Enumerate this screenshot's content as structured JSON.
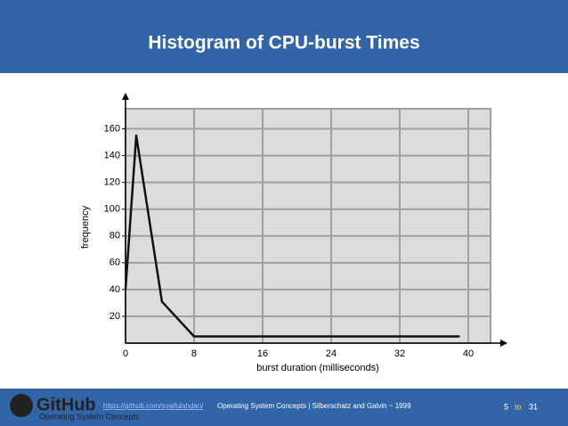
{
  "chart_data": {
    "type": "line",
    "title": "Histogram of CPU-burst Times",
    "x_label": "burst duration (milliseconds)",
    "y_label": "frequency",
    "x": [
      0,
      1.25,
      4.25,
      8,
      39
    ],
    "values": [
      40,
      155,
      31,
      5,
      5
    ],
    "color": "#111111",
    "xlim": [
      0,
      42.6
    ],
    "ylim": [
      0,
      175
    ],
    "xticks": [
      0,
      8,
      16,
      24,
      32,
      40
    ],
    "yticks": [
      20,
      40,
      60,
      80,
      100,
      120,
      140,
      160
    ],
    "grid": true
  },
  "footer": {
    "logo": "GitHub",
    "link": "https://github.com/syaifulahdan/",
    "credit": "Operating System Concepts | Silberschatz and Galvin ~ 1999",
    "course": "Operating System Concepts",
    "page": "5",
    "to": "to",
    "total": "31"
  }
}
